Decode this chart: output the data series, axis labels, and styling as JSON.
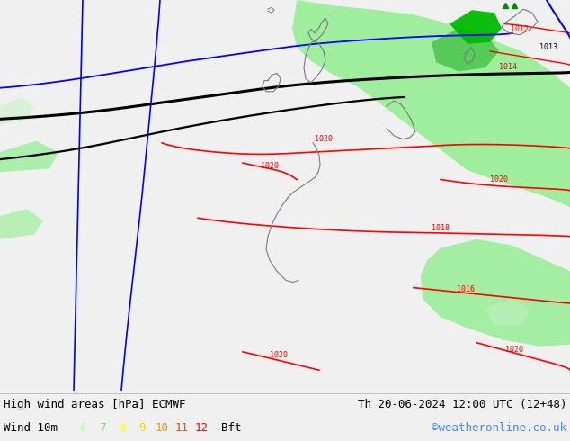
{
  "title_left": "High wind areas [hPa] ECMWF",
  "title_right": "Th 20-06-2024 12:00 UTC (12+48)",
  "subtitle_left": "Wind 10m",
  "subtitle_right": "©weatheronline.co.uk",
  "wind_labels": [
    "6",
    "7",
    "8",
    "9",
    "10",
    "11",
    "12"
  ],
  "wind_colors": [
    "#aaffaa",
    "#77dd77",
    "#ffff00",
    "#ffcc00",
    "#ff8800",
    "#ff4400",
    "#ff0000"
  ],
  "wind_suffix": "Bft",
  "sea_color": "#dde8f0",
  "title_fontsize": 9,
  "subtitle_fontsize": 9,
  "footer_bg": "#f0f0f0"
}
